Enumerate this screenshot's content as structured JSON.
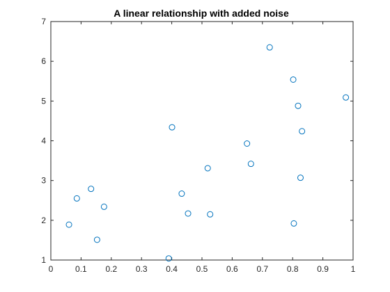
{
  "chart_data": {
    "type": "scatter",
    "title": "A linear relationship with added noise",
    "xlabel": "",
    "ylabel": "",
    "xlim": [
      0,
      1
    ],
    "ylim": [
      1,
      7
    ],
    "x_ticks": [
      0,
      0.1,
      0.2,
      0.3,
      0.4,
      0.5,
      0.6,
      0.7,
      0.8,
      0.9,
      1
    ],
    "x_tick_labels": [
      "0",
      "0.1",
      "0.2",
      "0.3",
      "0.4",
      "0.5",
      "0.6",
      "0.7",
      "0.8",
      "0.9",
      "1"
    ],
    "y_ticks": [
      1,
      2,
      3,
      4,
      5,
      6,
      7
    ],
    "y_tick_labels": [
      "1",
      "2",
      "3",
      "4",
      "5",
      "6",
      "7"
    ],
    "grid": false,
    "legend": "none",
    "marker": "open-circle",
    "marker_color": "#0072BD",
    "series": [
      {
        "points": [
          {
            "x": 0.06,
            "y": 1.89
          },
          {
            "x": 0.086,
            "y": 2.55
          },
          {
            "x": 0.133,
            "y": 2.79
          },
          {
            "x": 0.153,
            "y": 1.51
          },
          {
            "x": 0.176,
            "y": 2.34
          },
          {
            "x": 0.39,
            "y": 1.04
          },
          {
            "x": 0.401,
            "y": 4.34
          },
          {
            "x": 0.433,
            "y": 2.67
          },
          {
            "x": 0.454,
            "y": 2.17
          },
          {
            "x": 0.519,
            "y": 3.31
          },
          {
            "x": 0.527,
            "y": 2.15
          },
          {
            "x": 0.649,
            "y": 3.93
          },
          {
            "x": 0.662,
            "y": 3.42
          },
          {
            "x": 0.724,
            "y": 6.35
          },
          {
            "x": 0.802,
            "y": 5.54
          },
          {
            "x": 0.804,
            "y": 1.92
          },
          {
            "x": 0.818,
            "y": 4.88
          },
          {
            "x": 0.826,
            "y": 3.07
          },
          {
            "x": 0.831,
            "y": 4.24
          },
          {
            "x": 0.976,
            "y": 5.09
          }
        ]
      }
    ]
  }
}
